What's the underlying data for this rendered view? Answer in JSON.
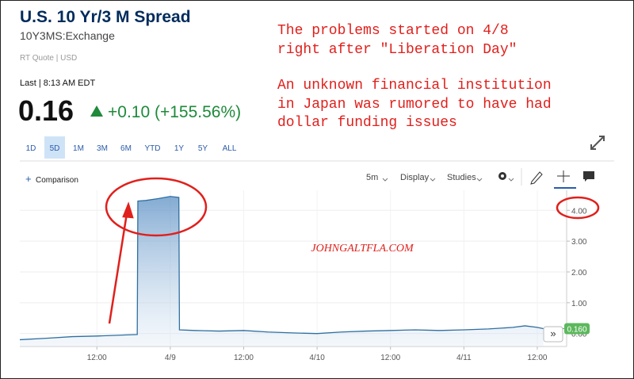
{
  "header": {
    "title": "U.S. 10 Yr/3 M Spread",
    "symbol": "10Y3MS:Exchange",
    "quote_type": "RT Quote | USD",
    "last_time": "Last | 8:13 AM EDT",
    "last_price": "0.16",
    "change": "+0.10 (+155.56%)"
  },
  "ranges": {
    "items": [
      "1D",
      "5D",
      "1M",
      "3M",
      "6M",
      "YTD",
      "1Y",
      "5Y",
      "ALL"
    ],
    "selected": 1
  },
  "toolbar": {
    "comparison": "Comparison",
    "interval": "5m",
    "display": "Display",
    "studies": "Studies"
  },
  "annotations": {
    "lines": [
      "The problems started on 4/8",
      "right after \"Liberation Day\"",
      "An unknown financial institution",
      "in Japan was rumored to have had",
      "dollar funding issues"
    ],
    "watermark": "JOHNGALTFLA.COM"
  },
  "chart_data": {
    "type": "area",
    "x": [
      -0.6,
      4,
      8,
      12,
      16,
      18.6,
      18.7,
      20,
      22,
      24,
      25.4,
      25.5,
      28,
      32,
      36,
      40,
      44,
      48,
      52,
      56,
      60,
      64,
      68,
      72,
      76,
      80,
      82,
      84,
      85
    ],
    "values": [
      -0.2,
      -0.15,
      -0.1,
      -0.08,
      -0.05,
      -0.03,
      4.3,
      4.32,
      4.38,
      4.45,
      4.42,
      0.12,
      0.1,
      0.08,
      0.1,
      0.05,
      0.02,
      0.0,
      0.05,
      0.08,
      0.1,
      0.12,
      0.1,
      0.12,
      0.15,
      0.2,
      0.25,
      0.2,
      0.16
    ],
    "value_labels": [
      null,
      null,
      null,
      null,
      null,
      null,
      null,
      null,
      null,
      null,
      null,
      null,
      null,
      null,
      null,
      null,
      null,
      null,
      null,
      null,
      null,
      null,
      null,
      null,
      null,
      null,
      null,
      null,
      "0.160"
    ],
    "color": "#2f6fa0",
    "xlim": [
      -0.6,
      88.8
    ],
    "xticks": [
      {
        "value": 12,
        "label": "12:00"
      },
      {
        "value": 24,
        "label": "4/9"
      },
      {
        "value": 36,
        "label": "12:00"
      },
      {
        "value": 48,
        "label": "4/10"
      },
      {
        "value": 60,
        "label": "12:00"
      },
      {
        "value": 72,
        "label": "4/11"
      },
      {
        "value": 84,
        "label": "12:00"
      }
    ],
    "ylim": [
      -0.42,
      4.65
    ],
    "yticks": [
      {
        "value": 0,
        "label": "0.00"
      },
      {
        "value": 1,
        "label": "1.00"
      },
      {
        "value": 2,
        "label": "2.00"
      },
      {
        "value": 3,
        "label": "3.00"
      },
      {
        "value": 4,
        "label": "4.00"
      }
    ],
    "grid": true
  }
}
